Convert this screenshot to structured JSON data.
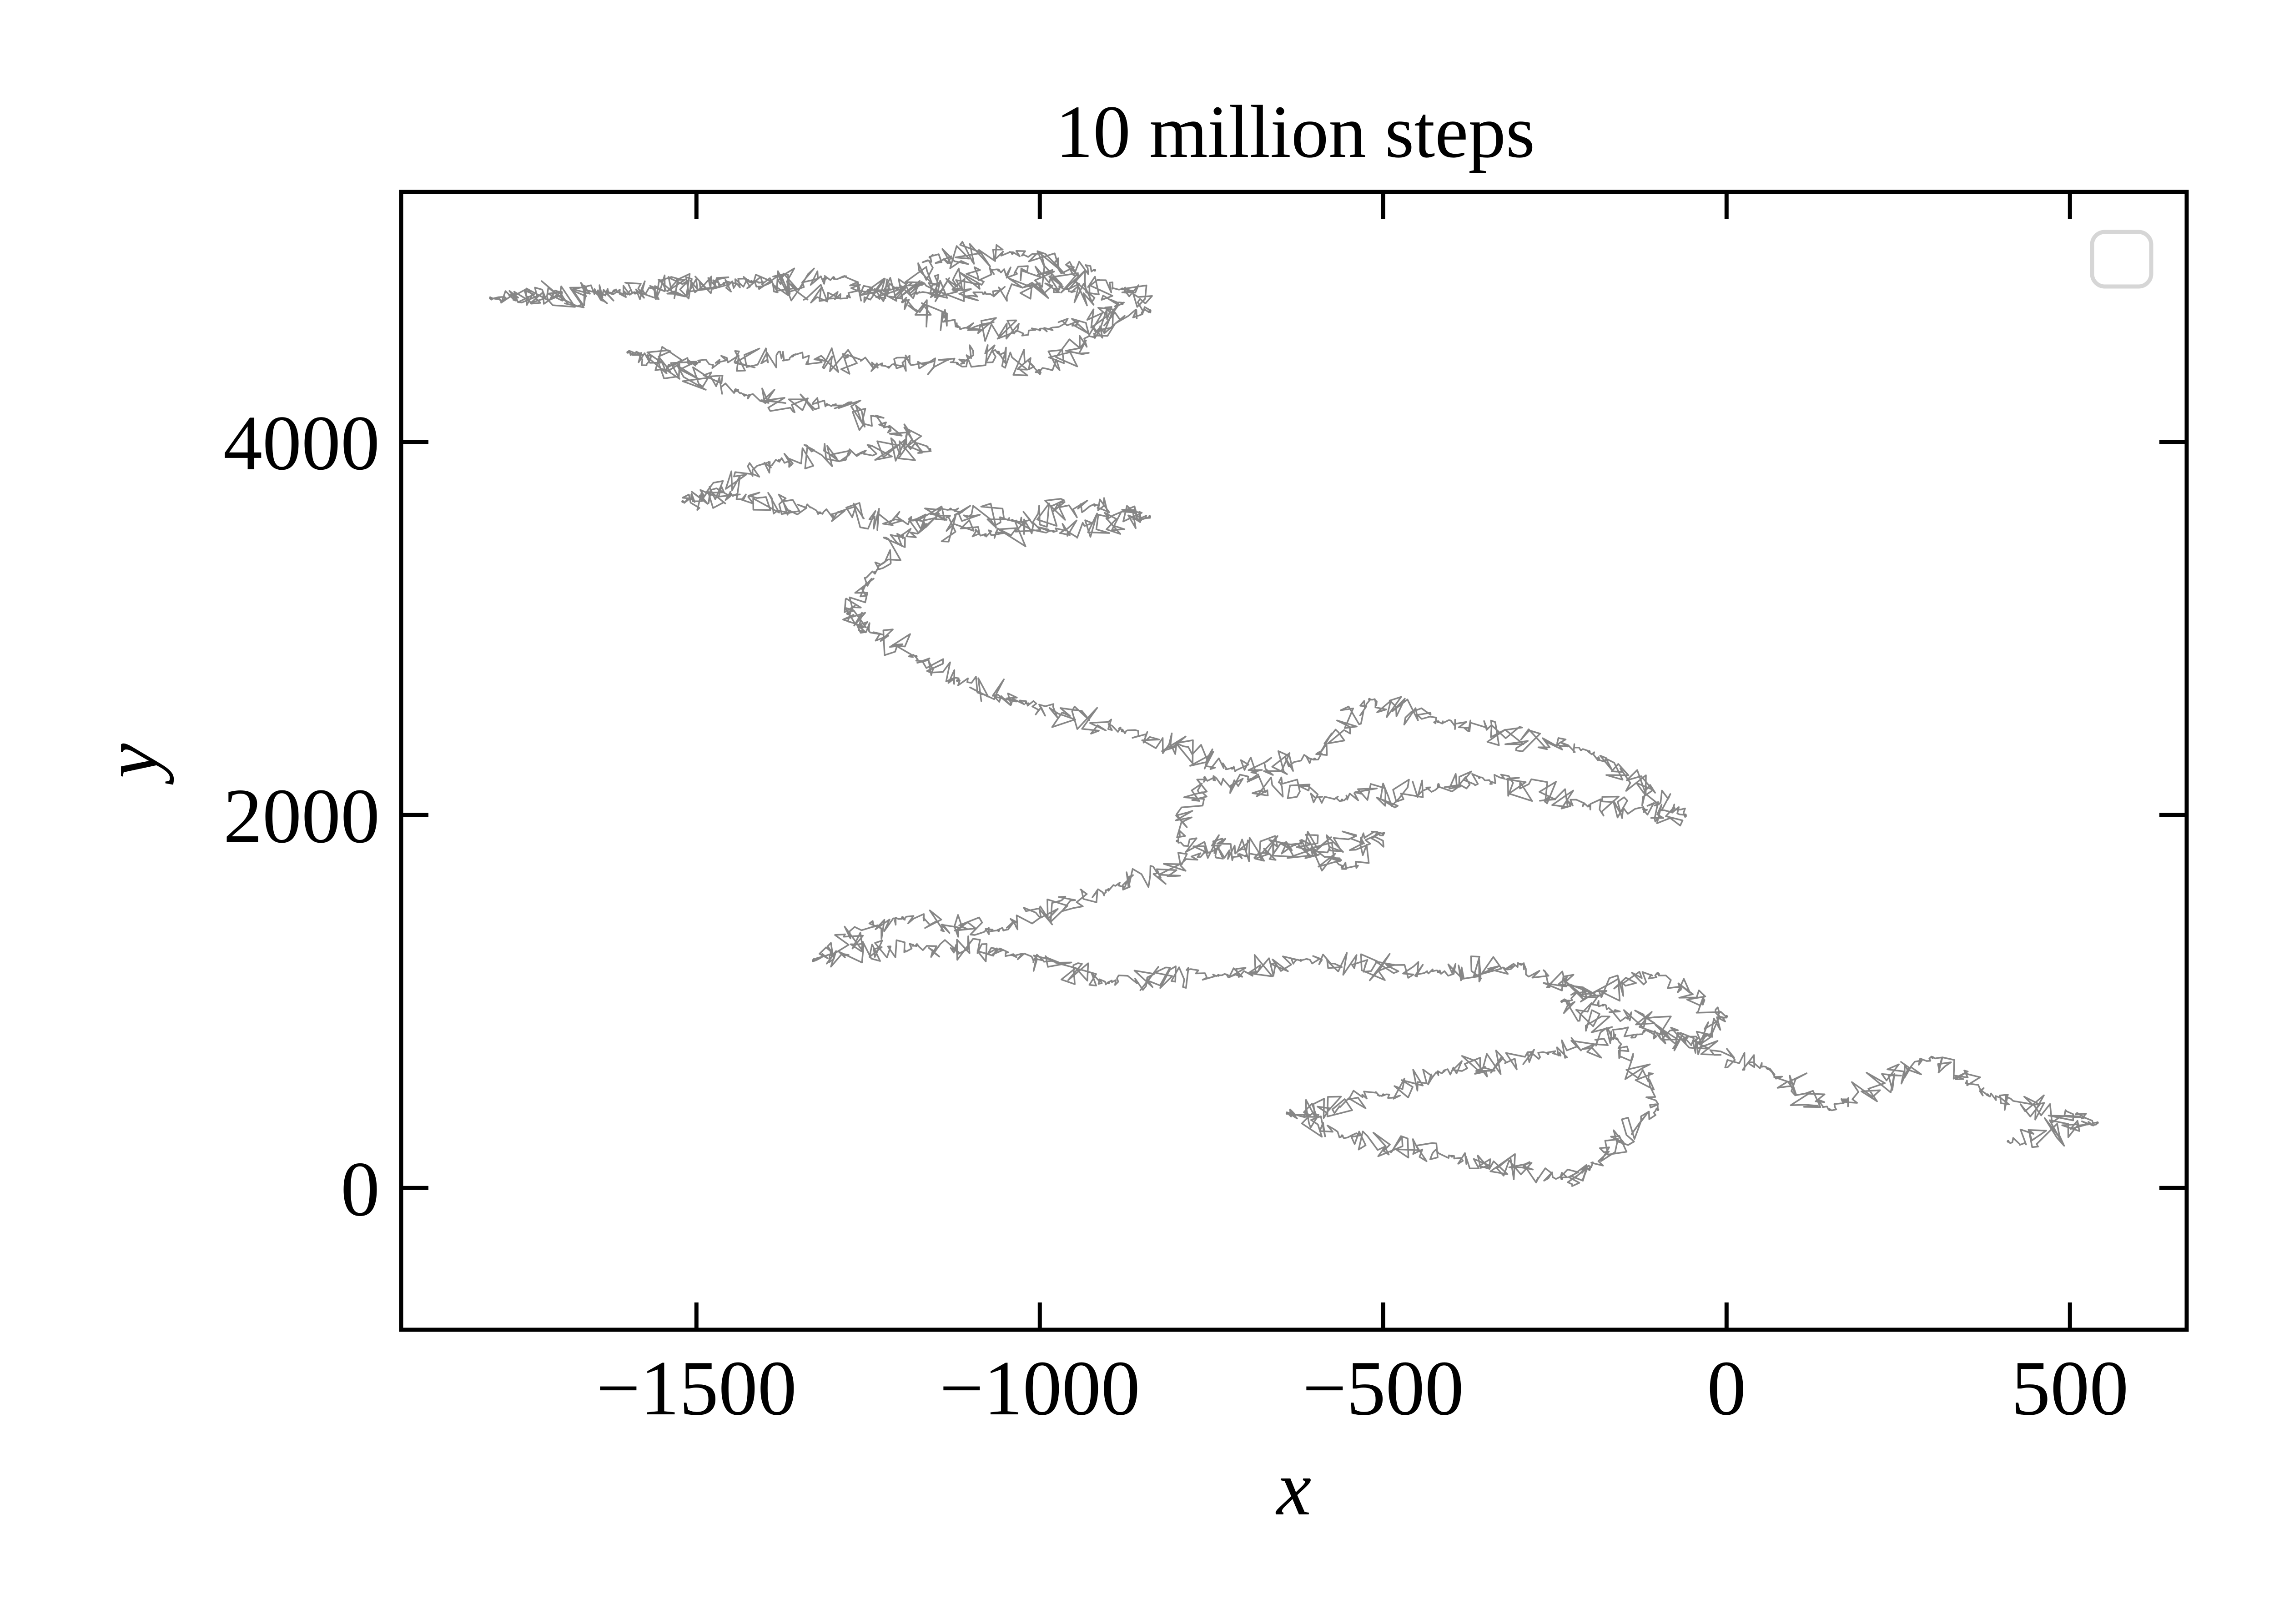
{
  "chart_data": {
    "type": "line",
    "title": "10 million steps",
    "xlabel": "x",
    "ylabel": "y",
    "xlim": [
      -1930,
      670
    ],
    "ylim": [
      -760,
      5340
    ],
    "xticks": [
      -1500,
      -1000,
      -500,
      0,
      500
    ],
    "xtick_labels": [
      "−1500",
      "−1000",
      "−500",
      "0",
      "500"
    ],
    "yticks": [
      0,
      2000,
      4000
    ],
    "ytick_labels": [
      "0",
      "2000",
      "4000"
    ],
    "grid": false,
    "legend": {
      "position": "top-right",
      "entries": []
    },
    "series": [
      {
        "color": "#808080",
        "x": [
          410,
          540,
          380,
          300,
          150,
          60,
          -120,
          -260,
          -420,
          -500,
          -640,
          -560,
          -400,
          -240,
          -200,
          -100,
          -160,
          -240,
          -100,
          0,
          -40,
          -180,
          -300,
          -420,
          -620,
          -740,
          -900,
          -1040,
          -1180,
          -1330,
          -1200,
          -1060,
          -900,
          -760,
          -620,
          -560,
          -500,
          -700,
          -800,
          -760,
          -560,
          -420,
          -360,
          -200,
          -120,
          -60,
          -200,
          -420,
          -520,
          -600,
          -720,
          -880,
          -1020,
          -1120,
          -1180,
          -1250,
          -1280,
          -1240,
          -1200,
          -1130,
          -1040,
          -920,
          -840,
          -980,
          -1080,
          -1180,
          -1320,
          -1450,
          -1520,
          -1380,
          -1260,
          -1160,
          -1220,
          -1310,
          -1430,
          -1600,
          -1500,
          -1360,
          -1220,
          -1120,
          -1060,
          -1000,
          -920,
          -880,
          -960,
          -1080,
          -1180,
          -1280,
          -1420,
          -1590,
          -1800,
          -1620,
          -1460,
          -1300,
          -1180,
          -1060,
          -880,
          -840,
          -1000,
          -1120,
          -1200,
          -1160,
          -1040,
          -920
        ],
        "y": [
          250,
          350,
          500,
          700,
          420,
          640,
          840,
          720,
          620,
          500,
          400,
          280,
          170,
          50,
          100,
          420,
          800,
          1000,
          1150,
          920,
          780,
          980,
          1200,
          1160,
          1220,
          1140,
          1100,
          1250,
          1300,
          1220,
          1450,
          1380,
          1600,
          1800,
          1850,
          1720,
          1900,
          1780,
          1860,
          2200,
          2080,
          2150,
          2200,
          2050,
          2030,
          2000,
          2340,
          2500,
          2620,
          2300,
          2250,
          2450,
          2600,
          2720,
          2850,
          3000,
          3080,
          3300,
          3500,
          3640,
          3580,
          3660,
          3600,
          3520,
          3500,
          3580,
          3620,
          3720,
          3680,
          3900,
          3940,
          3960,
          4080,
          4200,
          4250,
          4480,
          4420,
          4460,
          4400,
          4420,
          4480,
          4380,
          4560,
          4740,
          4820,
          4800,
          4840,
          4780,
          4860,
          4800,
          4770,
          4810,
          4850,
          4880,
          4800,
          4920,
          4820,
          4700,
          4600,
          4620,
          4750,
          4990,
          5010,
          4920
        ]
      }
    ]
  }
}
